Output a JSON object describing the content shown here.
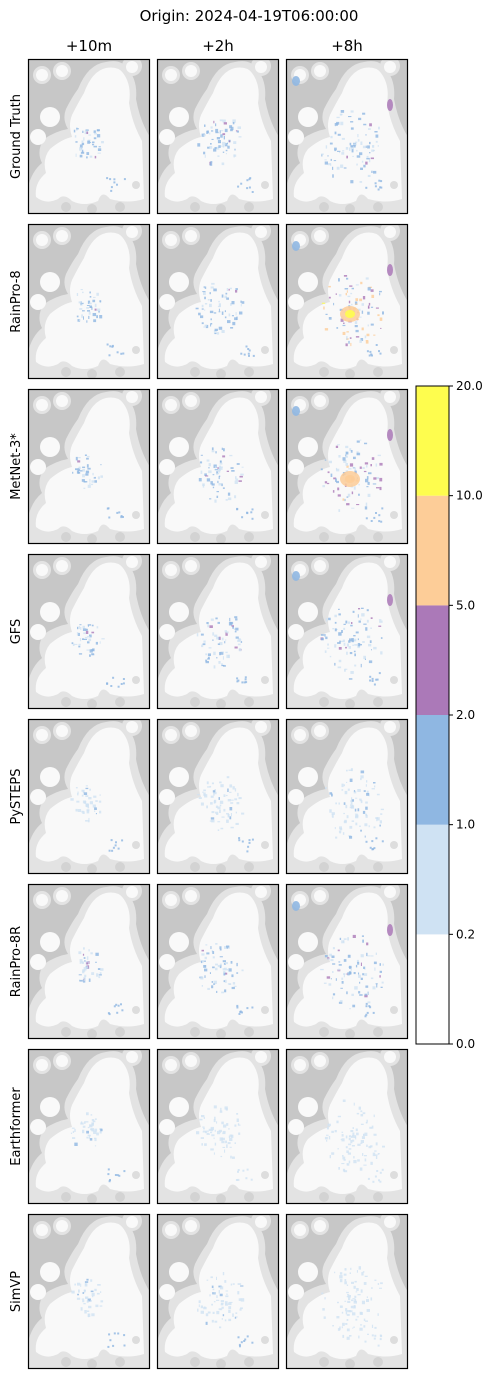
{
  "chart_data": {
    "type": "heatmap",
    "title": "Origin: 2024-04-19T06:00:00",
    "columns": [
      "+10m",
      "+2h",
      "+8h"
    ],
    "rows": [
      "Ground Truth",
      "RainPro-8",
      "MetNet-3*",
      "GFS",
      "PySTEPS",
      "RainPro-8R",
      "Earthformer",
      "SimVP"
    ],
    "colorbar": {
      "boundaries": [
        0.0,
        0.2,
        1.0,
        2.0,
        5.0,
        10.0,
        20.0
      ],
      "tick_labels": [
        "0.0",
        "0.2",
        "1.0",
        "2.0",
        "5.0",
        "10.0",
        "20.0"
      ],
      "colors": [
        "#ffffff",
        "#cfe2f3",
        "#8fb7e2",
        "#ab79b8",
        "#fdcd98",
        "#fefd4e"
      ]
    },
    "map_colors": {
      "background": "#c7c7c7",
      "land_outer": "#e3e3e3",
      "land_inner": "#f9f9f9"
    },
    "precip_max_class": [
      [
        3,
        3,
        3
      ],
      [
        3,
        3,
        5
      ],
      [
        3,
        3,
        4
      ],
      [
        3,
        3,
        3
      ],
      [
        2,
        2,
        2
      ],
      [
        3,
        3,
        3
      ],
      [
        2,
        1,
        1
      ],
      [
        2,
        2,
        1
      ]
    ]
  }
}
